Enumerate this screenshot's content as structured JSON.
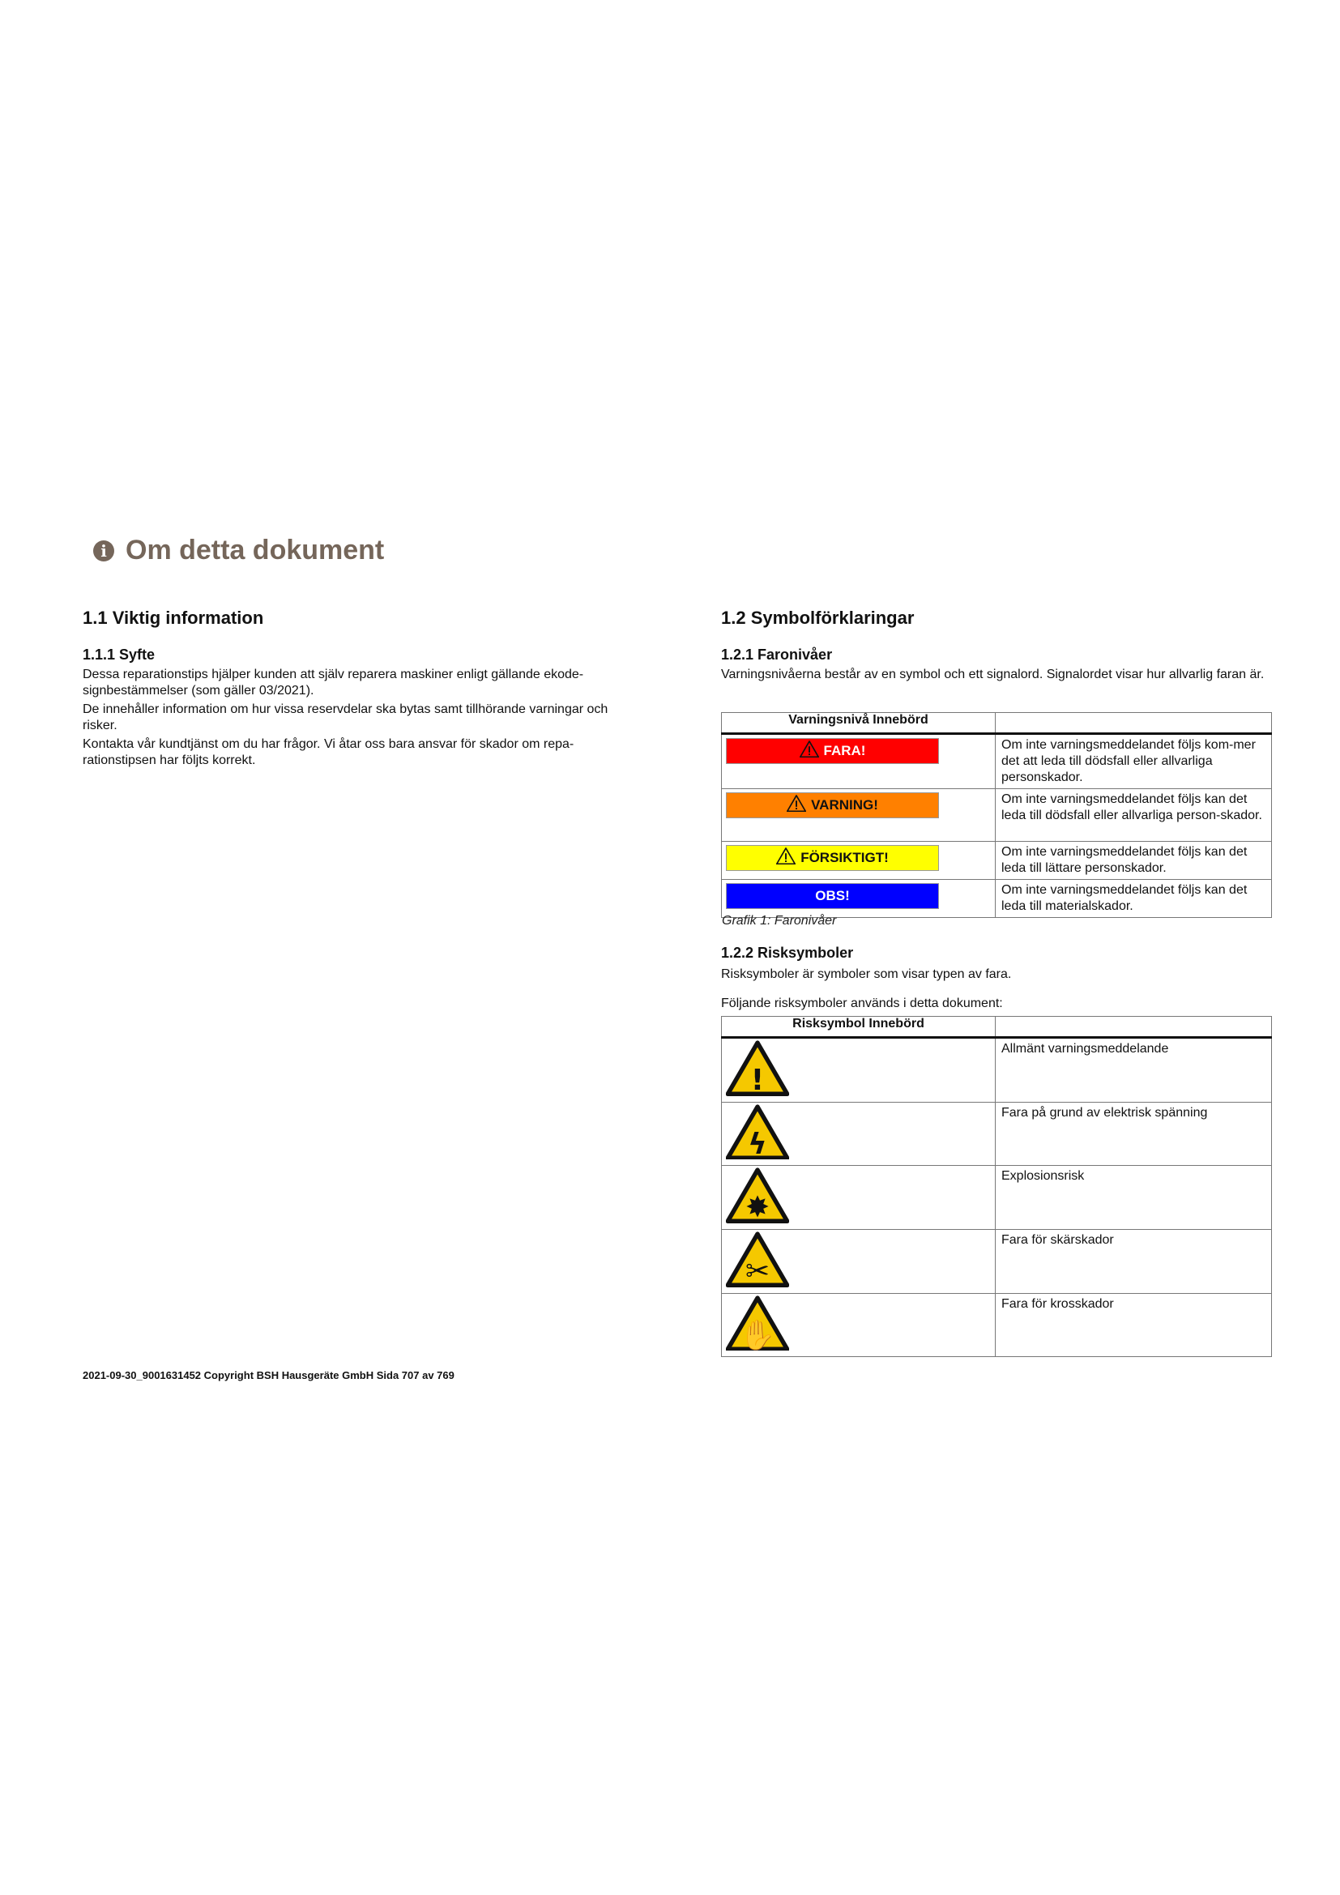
{
  "title": {
    "icon": "info-icon",
    "text": "Om detta dokument"
  },
  "left": {
    "h2": "1.1 Viktig information",
    "h3": "1.1.1 Syfte",
    "paragraphs": [
      "Dessa reparationstips hjälper kunden att själv reparera maskiner enligt gällande ekode-signbestämmelser (som gäller 03/2021).",
      "De innehåller information om hur vissa reservdelar ska bytas samt tillhörande varningar och risker.",
      "Kontakta vår kundtjänst om du har frågor. Vi åtar oss bara ansvar för skador om repa-rationstipsen har följts korrekt."
    ]
  },
  "right": {
    "h2": "1.2 Symbolförklaringar",
    "levels": {
      "h3": "1.2.1 Faronivåer",
      "intro": "Varningsnivåerna består av en symbol och ett signalord. Signalordet visar hur allvarlig faran är.",
      "header": "Varningsnivå Innebörd",
      "rows": [
        {
          "label": "FARA!",
          "bg": "#ff0000",
          "fg": "#ffffff",
          "icon": "warning-triangle-icon",
          "desc": "Om inte varningsmeddelandet följs kom-mer det att leda till dödsfall eller allvarliga personskador."
        },
        {
          "label": "VARNING!",
          "bg": "#ff8000",
          "fg": "#111111",
          "icon": "warning-triangle-icon",
          "desc": "Om inte varningsmeddelandet följs kan det leda till dödsfall eller allvarliga person-skador."
        },
        {
          "label": "FÖRSIKTIGT!",
          "bg": "#ffff00",
          "fg": "#111111",
          "icon": "warning-triangle-icon",
          "desc": "Om inte varningsmeddelandet följs kan det leda till lättare personskador."
        },
        {
          "label": "OBS!",
          "bg": "#0000ff",
          "fg": "#ffffff",
          "icon": "",
          "desc": "Om inte varningsmeddelandet följs kan det leda till materialskador."
        }
      ],
      "caption": "Grafik 1: Faronivåer"
    },
    "risks": {
      "h3": "1.2.2 Risksymboler",
      "intro1": "Risksymboler är symboler som visar typen av fara.",
      "intro2": "Följande risksymboler används i detta dokument:",
      "header": "Risksymbol Innebörd",
      "rows": [
        {
          "icon": "general-warning-icon",
          "glyph": "!",
          "desc": "Allmänt varningsmeddelande"
        },
        {
          "icon": "electric-hazard-icon",
          "glyph": "ϟ",
          "desc": "Fara på grund av elektrisk spänning"
        },
        {
          "icon": "explosion-hazard-icon",
          "glyph": "✸",
          "desc": "Explosionsrisk"
        },
        {
          "icon": "cut-hazard-icon",
          "glyph": "✂",
          "desc": "Fara för skärskador"
        },
        {
          "icon": "crush-hazard-icon",
          "glyph": "✋",
          "desc": "Fara för krosskador"
        }
      ]
    }
  },
  "footer": "2021-09-30_9001631452 Copyright BSH Hausgeräte GmbH Sida 707 av 769",
  "colors": {
    "title": "#75665a",
    "sign_yellow": "#f5c800"
  }
}
